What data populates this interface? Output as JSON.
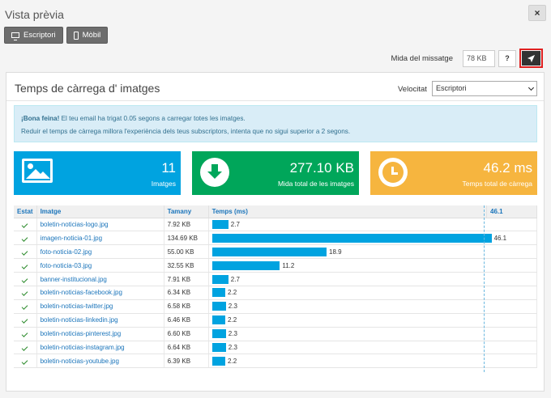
{
  "modal": {
    "title": "Vista prèvia",
    "close_label": "×"
  },
  "view_buttons": [
    {
      "label": "Escriptori",
      "icon": "desktop-icon"
    },
    {
      "label": "Mòbil",
      "icon": "mobile-icon"
    }
  ],
  "message_size": {
    "label": "Mida del missatge",
    "value": "78 KB",
    "help_label": "?"
  },
  "panel": {
    "title": "Temps de càrrega d' imatges",
    "speed_label": "Velocitat",
    "speed_value": "Escriptori"
  },
  "alert": {
    "strong": "¡Bona feina!",
    "line1": " El teu email ha trigat 0.05 segons a carregar totes les imatges.",
    "line2": "Reduir el temps de càrrega millora l'experiència dels teus subscriptors, intenta que no sigui superior a 2 segons."
  },
  "stats": [
    {
      "value": "11",
      "label": "Imatges",
      "color": "#00a3e0"
    },
    {
      "value": "277.10 KB",
      "label": "Mida total de les imatges",
      "color": "#00a65a"
    },
    {
      "value": "46.2 ms",
      "label": "Temps total de càrrega",
      "color": "#f6b53f"
    }
  ],
  "table": {
    "headers": {
      "state": "Estat",
      "image": "Imatge",
      "size": "Tamany",
      "time": "Temps (ms)",
      "max": "46.1"
    },
    "max_time": 46.1,
    "rows": [
      {
        "image": "boletin-noticias-logo.jpg",
        "size": "7.92 KB",
        "time": 2.7,
        "time_label": "2.7"
      },
      {
        "image": "imagen-noticia-01.jpg",
        "size": "134.69 KB",
        "time": 46.1,
        "time_label": "46.1"
      },
      {
        "image": "foto-noticia-02.jpg",
        "size": "55.00 KB",
        "time": 18.9,
        "time_label": "18.9"
      },
      {
        "image": "foto-noticia-03.jpg",
        "size": "32.55 KB",
        "time": 11.2,
        "time_label": "11.2"
      },
      {
        "image": "banner-institucional.jpg",
        "size": "7.91 KB",
        "time": 2.7,
        "time_label": "2.7"
      },
      {
        "image": "boletin-noticias-facebook.jpg",
        "size": "6.34 KB",
        "time": 2.2,
        "time_label": "2.2"
      },
      {
        "image": "boletin-noticias-twitter.jpg",
        "size": "6.58 KB",
        "time": 2.3,
        "time_label": "2.3"
      },
      {
        "image": "boletin-noticias-linkedin.jpg",
        "size": "6.46 KB",
        "time": 2.2,
        "time_label": "2.2"
      },
      {
        "image": "boletin-noticias-pinterest.jpg",
        "size": "6.60 KB",
        "time": 2.3,
        "time_label": "2.3"
      },
      {
        "image": "boletin-noticias-instagram.jpg",
        "size": "6.64 KB",
        "time": 2.3,
        "time_label": "2.3"
      },
      {
        "image": "boletin-noticias-youtube.jpg",
        "size": "6.39 KB",
        "time": 2.2,
        "time_label": "2.2"
      }
    ]
  }
}
